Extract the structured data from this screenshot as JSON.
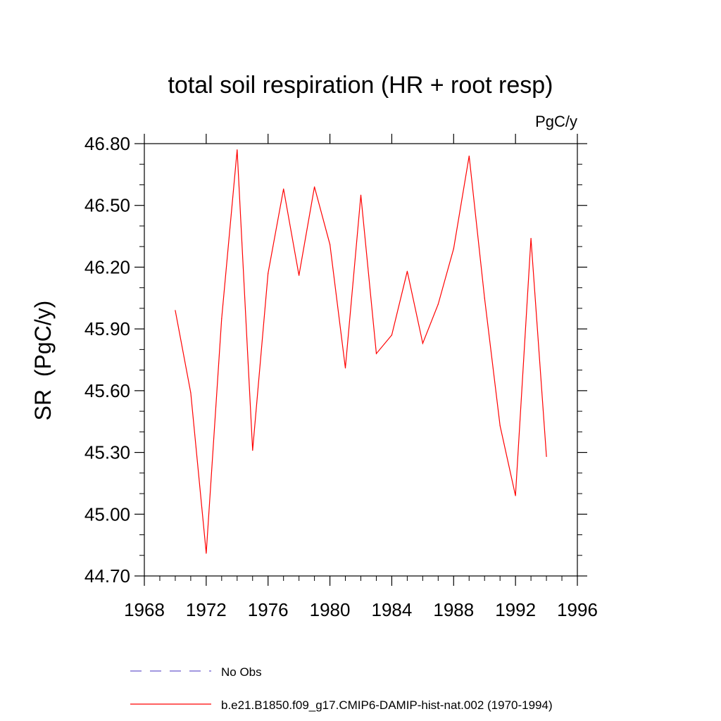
{
  "chart_data": {
    "type": "line",
    "title": "total soil respiration (HR + root resp)",
    "units": "PgC/y",
    "ylabel": "SR  (PgC/y)",
    "xlabel": "",
    "xlim": [
      1968,
      1996
    ],
    "ylim": [
      44.7,
      46.8
    ],
    "x_ticks": [
      1968,
      1972,
      1976,
      1980,
      1984,
      1988,
      1992,
      1996
    ],
    "x_tick_labels": [
      "1968",
      "1972",
      "1976",
      "1980",
      "1984",
      "1988",
      "1992",
      "1996"
    ],
    "y_ticks": [
      44.7,
      45.0,
      45.3,
      45.6,
      45.9,
      46.2,
      46.5,
      46.8
    ],
    "y_tick_labels": [
      "44.70",
      "45.00",
      "45.30",
      "45.60",
      "45.90",
      "46.20",
      "46.50",
      "46.80"
    ],
    "grid": false,
    "legend_position": "bottom",
    "series": [
      {
        "name": "b.e21.B1850.f09_g17.CMIP6-DAMIP-hist-nat.002 (1970-1994)",
        "color": "#ff0000",
        "style": "solid",
        "x": [
          1970,
          1971,
          1972,
          1973,
          1974,
          1975,
          1976,
          1977,
          1978,
          1979,
          1980,
          1981,
          1982,
          1983,
          1984,
          1985,
          1986,
          1987,
          1988,
          1989,
          1990,
          1991,
          1992,
          1993,
          1994
        ],
        "y": [
          45.99,
          45.59,
          44.81,
          45.95,
          46.77,
          45.31,
          46.17,
          46.58,
          46.16,
          46.59,
          46.31,
          45.71,
          46.55,
          45.78,
          45.87,
          46.18,
          45.83,
          46.02,
          46.29,
          46.74,
          46.05,
          45.43,
          45.09,
          46.34,
          45.28
        ]
      }
    ],
    "legend": [
      {
        "label": "No Obs",
        "color": "#6a5acd",
        "style": "dashed"
      },
      {
        "label": "b.e21.B1850.f09_g17.CMIP6-DAMIP-hist-nat.002 (1970-1994)",
        "color": "#ff0000",
        "style": "solid"
      }
    ]
  }
}
